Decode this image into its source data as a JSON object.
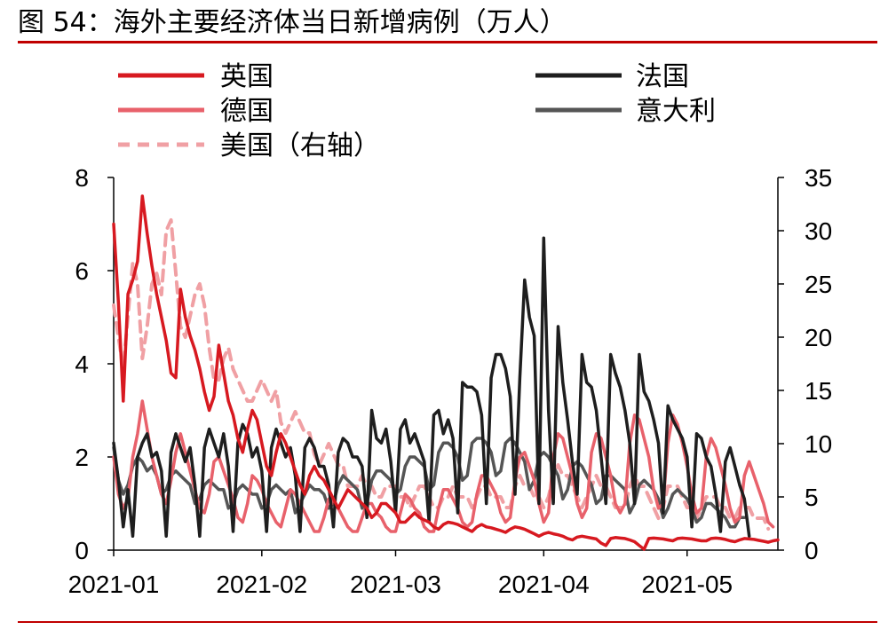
{
  "header": {
    "title": "图 54：海外主要经济体当日新增病例（万人）"
  },
  "colors": {
    "uk": "#d71920",
    "germany": "#e8616b",
    "usa": "#f0a0a4",
    "france": "#1e1e1e",
    "italy": "#555555",
    "axis": "#000000",
    "rule": "#c00000"
  },
  "chart_data": {
    "type": "line",
    "title": "海外主要经济体当日新增病例（万人）",
    "unit": "万人",
    "x_range": [
      "2021-01-01",
      "2021-05-24"
    ],
    "x_ticks": [
      {
        "label": "2021-01",
        "day": 0
      },
      {
        "label": "2021-02",
        "day": 31
      },
      {
        "label": "2021-03",
        "day": 59
      },
      {
        "label": "2021-04",
        "day": 90
      },
      {
        "label": "2021-05",
        "day": 120
      }
    ],
    "left_axis": {
      "range": [
        0,
        8
      ],
      "ticks": [
        "0",
        "2",
        "4",
        "6",
        "8"
      ]
    },
    "right_axis": {
      "range": [
        0,
        35
      ],
      "ticks": [
        "0",
        "5",
        "10",
        "15",
        "20",
        "25",
        "30",
        "35"
      ]
    },
    "series": [
      {
        "key": "uk",
        "name": "英国",
        "axis": "left",
        "style": "solid",
        "values": [
          7.0,
          5.3,
          3.2,
          5.5,
          5.8,
          6.2,
          7.6,
          6.8,
          6.1,
          5.5,
          5.0,
          4.5,
          3.8,
          3.7,
          5.6,
          5.0,
          4.6,
          4.3,
          3.9,
          3.4,
          3.0,
          3.3,
          4.4,
          3.8,
          3.2,
          2.9,
          2.4,
          2.1,
          2.6,
          3.0,
          2.8,
          2.3,
          1.8,
          1.6,
          2.1,
          2.5,
          2.3,
          2.0,
          1.7,
          1.4,
          1.2,
          1.6,
          1.8,
          1.6,
          1.5,
          1.3,
          1.1,
          0.9,
          1.1,
          1.3,
          1.2,
          1.1,
          1.0,
          0.9,
          0.7,
          0.8,
          1.0,
          1.0,
          0.9,
          0.8,
          0.6,
          0.6,
          0.7,
          0.8,
          0.7,
          0.65,
          0.6,
          0.5,
          0.45,
          0.55,
          0.6,
          0.58,
          0.55,
          0.5,
          0.45,
          0.4,
          0.5,
          0.55,
          0.5,
          0.48,
          0.45,
          0.42,
          0.38,
          0.45,
          0.5,
          0.48,
          0.45,
          0.4,
          0.35,
          0.3,
          0.35,
          0.38,
          0.35,
          0.33,
          0.3,
          0.25,
          0.22,
          0.28,
          0.3,
          0.28,
          0.26,
          0.24,
          0.15,
          0.1,
          0.25,
          0.27,
          0.26,
          0.25,
          0.22,
          0.18,
          0.1,
          0.02,
          0.25,
          0.26,
          0.25,
          0.24,
          0.22,
          0.2,
          0.25,
          0.26,
          0.25,
          0.24,
          0.22,
          0.2,
          0.2,
          0.25,
          0.26,
          0.25,
          0.23,
          0.2,
          0.18,
          0.22,
          0.25,
          0.24,
          0.23,
          0.21,
          0.19,
          0.17,
          0.2,
          0.22
        ]
      },
      {
        "key": "germany",
        "name": "德国",
        "axis": "left",
        "style": "solid",
        "values": [
          2.0,
          1.2,
          0.9,
          1.1,
          2.0,
          2.5,
          3.2,
          2.6,
          2.0,
          1.6,
          1.2,
          1.0,
          1.5,
          2.1,
          2.5,
          2.1,
          1.7,
          1.3,
          0.9,
          0.8,
          1.2,
          1.9,
          2.0,
          1.7,
          1.4,
          1.1,
          0.7,
          0.6,
          1.0,
          1.6,
          1.5,
          1.3,
          1.0,
          0.8,
          0.6,
          0.5,
          0.9,
          1.3,
          1.2,
          1.0,
          0.8,
          0.6,
          0.4,
          0.4,
          0.7,
          1.1,
          1.0,
          0.9,
          0.7,
          0.5,
          0.4,
          0.4,
          0.7,
          1.0,
          1.0,
          0.8,
          0.7,
          0.5,
          0.4,
          0.4,
          0.8,
          1.2,
          1.1,
          0.9,
          0.8,
          0.5,
          0.4,
          0.4,
          0.9,
          1.3,
          1.3,
          1.1,
          0.9,
          0.6,
          0.5,
          0.6,
          1.2,
          1.6,
          1.6,
          1.4,
          1.2,
          0.8,
          0.6,
          0.7,
          1.5,
          2.0,
          2.1,
          1.8,
          1.5,
          1.0,
          0.6,
          0.8,
          2.0,
          2.5,
          2.4,
          2.0,
          1.6,
          1.0,
          0.7,
          0.9,
          2.1,
          2.5,
          2.4,
          2.0,
          1.6,
          1.0,
          0.8,
          1.0,
          2.3,
          2.9,
          2.8,
          2.4,
          2.0,
          1.3,
          0.9,
          1.0,
          2.3,
          2.9,
          2.7,
          2.3,
          1.8,
          1.2,
          0.8,
          0.9,
          2.0,
          2.4,
          2.2,
          1.8,
          1.4,
          0.9,
          0.6,
          0.7,
          1.6,
          1.9,
          1.6,
          1.3,
          1.0,
          0.6,
          0.5
        ]
      },
      {
        "key": "usa",
        "name": "美国（右轴）",
        "axis": "right",
        "style": "dashed",
        "values": [
          23,
          20,
          17,
          22,
          27,
          25,
          18,
          21,
          25,
          26,
          24,
          30,
          31,
          26,
          21,
          20,
          22,
          24,
          25,
          23,
          19,
          16,
          16,
          18,
          19,
          17,
          16,
          15,
          14,
          14,
          15,
          16,
          15,
          14,
          15,
          12,
          11,
          12,
          13,
          12,
          11,
          11,
          9,
          8,
          9,
          10,
          9,
          8,
          8,
          6,
          6,
          6,
          7,
          6,
          6,
          5,
          5,
          6,
          6,
          6,
          5,
          5,
          4,
          5,
          6,
          6,
          5,
          4,
          4,
          5,
          5,
          6,
          5,
          5,
          5,
          4,
          5,
          6,
          6,
          5,
          5,
          5,
          4,
          4,
          6,
          7,
          6,
          6,
          5,
          5,
          4,
          5,
          7,
          8,
          7,
          7,
          6,
          5,
          4,
          5,
          6,
          7,
          6,
          6,
          5,
          4,
          4,
          4,
          6,
          7,
          6,
          6,
          5,
          4,
          3,
          4,
          6,
          6,
          6,
          5,
          4,
          4,
          3,
          4,
          5,
          5,
          5,
          4,
          4,
          3,
          3,
          4,
          4,
          4,
          3,
          3,
          3,
          2
        ]
      },
      {
        "key": "france",
        "name": "法国",
        "axis": "left",
        "style": "solid",
        "values": [
          2.3,
          1.5,
          0.5,
          1.3,
          0.3,
          2.0,
          2.3,
          2.5,
          2.0,
          2.1,
          1.7,
          0.3,
          2.1,
          2.5,
          2.2,
          1.9,
          2.2,
          1.4,
          0.3,
          2.2,
          2.6,
          2.3,
          2.0,
          2.5,
          1.8,
          0.4,
          2.3,
          2.7,
          2.5,
          2.0,
          2.2,
          1.7,
          0.4,
          2.2,
          2.6,
          2.3,
          2.0,
          2.2,
          1.6,
          0.4,
          2.2,
          2.4,
          2.2,
          1.8,
          1.8,
          1.4,
          0.5,
          2.1,
          2.4,
          2.3,
          2.0,
          2.0,
          1.8,
          0.7,
          3.0,
          2.4,
          2.3,
          2.6,
          1.9,
          0.8,
          2.6,
          2.8,
          2.3,
          2.5,
          2.2,
          1.9,
          0.6,
          2.9,
          3.0,
          2.5,
          2.8,
          2.4,
          0.8,
          3.6,
          3.5,
          3.5,
          3.4,
          2.9,
          1.0,
          3.7,
          4.2,
          4.2,
          3.9,
          3.3,
          1.2,
          3.7,
          5.8,
          5.0,
          4.6,
          1.0,
          6.7,
          3.0,
          1.0,
          4.8,
          3.6,
          2.8,
          1.9,
          1.2,
          4.2,
          3.6,
          3.5,
          3.0,
          2.0,
          1.0,
          4.2,
          3.8,
          3.5,
          3.0,
          2.3,
          1.0,
          4.2,
          3.4,
          3.2,
          2.8,
          2.3,
          0.8,
          3.1,
          2.8,
          2.6,
          2.4,
          2.0,
          0.5,
          2.5,
          2.4,
          2.0,
          1.8,
          1.2,
          0.4,
          1.9,
          2.2,
          1.8,
          1.4,
          1.1,
          0.3
        ]
      },
      {
        "key": "italy",
        "name": "意大利",
        "axis": "left",
        "style": "solid",
        "values": [
          2.2,
          1.5,
          1.2,
          1.4,
          1.8,
          2.0,
          1.9,
          1.7,
          1.8,
          1.6,
          1.2,
          1.3,
          1.6,
          1.7,
          1.6,
          1.5,
          1.4,
          1.0,
          1.1,
          1.4,
          1.5,
          1.4,
          1.3,
          1.3,
          0.9,
          1.0,
          1.3,
          1.4,
          1.3,
          1.2,
          1.2,
          0.9,
          1.0,
          1.3,
          1.4,
          1.3,
          1.2,
          1.3,
          0.8,
          1.0,
          1.2,
          1.4,
          1.3,
          1.3,
          1.2,
          0.9,
          1.0,
          1.4,
          1.6,
          1.5,
          1.4,
          1.3,
          0.9,
          1.0,
          1.5,
          1.7,
          1.7,
          1.6,
          1.5,
          1.2,
          1.3,
          1.8,
          2.0,
          2.0,
          1.9,
          1.8,
          1.3,
          1.4,
          2.1,
          2.3,
          2.3,
          2.2,
          2.0,
          1.5,
          1.6,
          2.3,
          2.4,
          2.4,
          2.3,
          2.1,
          1.6,
          1.7,
          2.3,
          2.4,
          2.3,
          2.1,
          1.9,
          1.3,
          1.5,
          2.0,
          2.1,
          2.0,
          1.8,
          1.6,
          1.1,
          1.3,
          1.8,
          1.9,
          1.8,
          1.6,
          1.4,
          1.0,
          1.1,
          1.6,
          1.6,
          1.5,
          1.4,
          1.3,
          0.8,
          1.0,
          1.4,
          1.5,
          1.4,
          1.3,
          1.1,
          0.7,
          0.9,
          1.2,
          1.3,
          1.2,
          1.1,
          0.9,
          0.6,
          0.7,
          1.0,
          1.0,
          0.9,
          0.8,
          0.7,
          0.5,
          0.5,
          0.7,
          0.7
        ]
      }
    ]
  }
}
